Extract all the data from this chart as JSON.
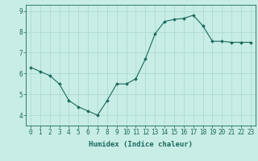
{
  "x": [
    0,
    1,
    2,
    3,
    4,
    5,
    6,
    7,
    8,
    9,
    10,
    11,
    12,
    13,
    14,
    15,
    16,
    17,
    18,
    19,
    20,
    21,
    22,
    23
  ],
  "y": [
    6.3,
    6.1,
    5.9,
    5.5,
    4.7,
    4.4,
    4.2,
    4.0,
    4.7,
    5.5,
    5.5,
    5.75,
    6.7,
    7.9,
    8.5,
    8.6,
    8.65,
    8.8,
    8.3,
    7.55,
    7.55,
    7.5,
    7.5,
    7.5
  ],
  "line_color": "#1a6b5e",
  "marker": "D",
  "marker_size": 2,
  "bg_color": "#c8ece6",
  "grid_color": "#a8d8d0",
  "xlabel": "Humidex (Indice chaleur)",
  "ylim": [
    3.5,
    9.3
  ],
  "xlim": [
    -0.5,
    23.5
  ],
  "yticks": [
    4,
    5,
    6,
    7,
    8,
    9
  ],
  "xticks": [
    0,
    1,
    2,
    3,
    4,
    5,
    6,
    7,
    8,
    9,
    10,
    11,
    12,
    13,
    14,
    15,
    16,
    17,
    18,
    19,
    20,
    21,
    22,
    23
  ],
  "xlabel_fontsize": 6.5,
  "tick_fontsize": 5.5
}
